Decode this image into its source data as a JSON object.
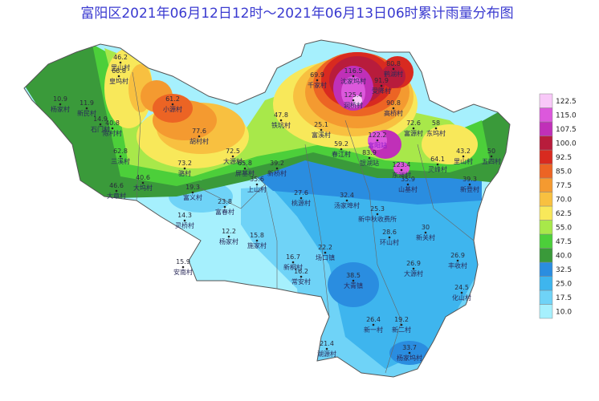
{
  "title": "富阳区2021年06月12日12时～2021年06月13日06时累计雨量分布图",
  "legend": {
    "levels": [
      {
        "label": "10.0",
        "color": "#a6f0fd"
      },
      {
        "label": "17.5",
        "color": "#6fd3f7"
      },
      {
        "label": "25.0",
        "color": "#3eb5ee"
      },
      {
        "label": "32.5",
        "color": "#2a8de0"
      },
      {
        "label": "40.0",
        "color": "#3a9a3a"
      },
      {
        "label": "47.5",
        "color": "#4ccf3a"
      },
      {
        "label": "55.0",
        "color": "#a8e84a"
      },
      {
        "label": "62.5",
        "color": "#f8e85a"
      },
      {
        "label": "70.0",
        "color": "#f8c040"
      },
      {
        "label": "77.5",
        "color": "#f49a30"
      },
      {
        "label": "85.0",
        "color": "#ec6424"
      },
      {
        "label": "92.5",
        "color": "#d82a20"
      },
      {
        "label": "100.0",
        "color": "#b81c3c"
      },
      {
        "label": "107.5",
        "color": "#c030b8"
      },
      {
        "label": "115.0",
        "color": "#dc58dc"
      },
      {
        "label": "122.5",
        "color": "#f8c8f8"
      }
    ]
  },
  "stations": [
    {
      "value": "10.9",
      "name": "杨家村"
    },
    {
      "value": "11.9",
      "name": "新民村"
    },
    {
      "value": "14.9",
      "name": "石门村"
    },
    {
      "value": "46.2",
      "name": "里山村"
    },
    {
      "value": "66.8",
      "name": "皇坞村"
    },
    {
      "value": "40.8",
      "name": "陈村村"
    },
    {
      "value": "62.8",
      "name": "三溪村"
    },
    {
      "value": "61.2",
      "name": "小源村"
    },
    {
      "value": "77.6",
      "name": "胡村村"
    },
    {
      "value": "72.5",
      "name": "大源村"
    },
    {
      "value": "65.8",
      "name": "屏基村"
    },
    {
      "value": "73.2",
      "name": "骆村"
    },
    {
      "value": "46.6",
      "name": "大章村"
    },
    {
      "value": "40.6",
      "name": "大坞村"
    },
    {
      "value": "19.3",
      "name": "富义村"
    },
    {
      "value": "14.3",
      "name": "灵桥村"
    },
    {
      "value": "23.8",
      "name": "富春村"
    },
    {
      "value": "12.2",
      "name": "杨家村"
    },
    {
      "value": "15.9",
      "name": "安南村"
    },
    {
      "value": "15.8",
      "name": "施家村"
    },
    {
      "value": "35.6",
      "name": "上山村"
    },
    {
      "value": "39.2",
      "name": "新桥村"
    },
    {
      "value": "47.8",
      "name": "铁坑村"
    },
    {
      "value": "25.1",
      "name": "富溪村"
    },
    {
      "value": "69.9",
      "name": "千家村"
    },
    {
      "value": "116.5",
      "name": "沈家坞村"
    },
    {
      "value": "125.4",
      "name": "洞桥村"
    },
    {
      "value": "91.9",
      "name": "受降村"
    },
    {
      "value": "80.8",
      "name": "鹤湖村"
    },
    {
      "value": "90.8",
      "name": "高桥村"
    },
    {
      "value": "72.6",
      "name": "富源村"
    },
    {
      "value": "58",
      "name": "东坞村"
    },
    {
      "value": "122.2",
      "name": "富阳站"
    },
    {
      "value": "59.2",
      "name": "春江村"
    },
    {
      "value": "83.9",
      "name": "银湖站"
    },
    {
      "value": "123.4",
      "name": "东洲村"
    },
    {
      "value": "35.9",
      "name": "山基村"
    },
    {
      "value": "64.1",
      "name": "灵峰村"
    },
    {
      "value": "43.2",
      "name": "里山村"
    },
    {
      "value": "50",
      "name": "五四村"
    },
    {
      "value": "39.3",
      "name": "新登村"
    },
    {
      "value": "27.6",
      "name": "桃源村"
    },
    {
      "value": "32.4",
      "name": "汤家埠村"
    },
    {
      "value": "25.3",
      "name": "新中秋收费所"
    },
    {
      "value": "28.6",
      "name": "环山村"
    },
    {
      "value": "30",
      "name": "新关村"
    },
    {
      "value": "22.2",
      "name": "场口镇"
    },
    {
      "value": "16.7",
      "name": "新桐村"
    },
    {
      "value": "16.2",
      "name": "常安村"
    },
    {
      "value": "38.5",
      "name": "大青镇"
    },
    {
      "value": "26.9",
      "name": "大源村"
    },
    {
      "value": "26.9",
      "name": "丰收村"
    },
    {
      "value": "24.5",
      "name": "化山村"
    },
    {
      "value": "26.4",
      "name": "新一村"
    },
    {
      "value": "19.2",
      "name": "新二村"
    },
    {
      "value": "21.4",
      "name": "湖源村"
    },
    {
      "value": "33.7",
      "name": "杨家坞村"
    }
  ]
}
